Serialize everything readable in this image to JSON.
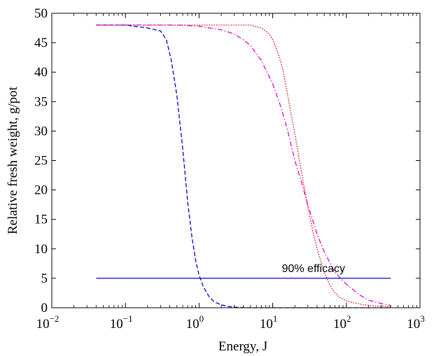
{
  "chart_data": {
    "type": "line",
    "xscale": "log",
    "xlabel": "Energy, J",
    "ylabel": "Relative fresh weight, g/pot",
    "xlim": [
      0.01,
      1000
    ],
    "ylim": [
      0,
      50
    ],
    "grid": false,
    "legend": "none",
    "x_ticks": [
      {
        "base": "10",
        "exp": "−2",
        "value": 0.01
      },
      {
        "base": "10",
        "exp": "−1",
        "value": 0.1
      },
      {
        "base": "10",
        "exp": "0",
        "value": 1
      },
      {
        "base": "10",
        "exp": "1",
        "value": 10
      },
      {
        "base": "10",
        "exp": "2",
        "value": 100
      },
      {
        "base": "10",
        "exp": "3",
        "value": 1000
      }
    ],
    "y_ticks": [
      "0",
      "5",
      "10",
      "15",
      "20",
      "25",
      "30",
      "35",
      "40",
      "45",
      "50"
    ],
    "series": [
      {
        "color": "#0000cc",
        "dash": "dashed",
        "x": [
          0.04,
          0.1,
          0.2,
          0.3,
          0.36,
          0.42,
          0.5,
          0.6,
          0.7,
          0.8,
          0.9,
          1.0,
          1.15,
          1.35,
          1.6,
          2.0,
          2.5,
          3.5,
          5,
          10,
          30,
          100,
          400
        ],
        "y": [
          48,
          48,
          47.5,
          47,
          45.5,
          42,
          36,
          27,
          18,
          12,
          8,
          5.5,
          3.5,
          2,
          1,
          0.5,
          0.2,
          0.05,
          0,
          0,
          0,
          0,
          0
        ]
      },
      {
        "color": "#dd0000",
        "dash": "dotted",
        "x": [
          0.04,
          0.1,
          1,
          5,
          7,
          9,
          10,
          12,
          14,
          16,
          18,
          20,
          22,
          25,
          30,
          35,
          40,
          50,
          60,
          70,
          80,
          100,
          130,
          170,
          250,
          400
        ],
        "y": [
          48,
          48,
          48,
          48,
          47.5,
          46.5,
          45.5,
          43,
          40,
          36,
          32.5,
          29.5,
          26.5,
          22.5,
          17,
          13,
          10,
          6,
          3.8,
          2.5,
          1.8,
          1.2,
          0.8,
          0.5,
          0.3,
          0.2
        ]
      },
      {
        "color": "#dd00dd",
        "dash": "dashdot",
        "x": [
          0.04,
          0.1,
          0.5,
          1,
          2,
          3,
          4,
          5,
          7,
          10,
          13,
          16,
          20,
          25,
          30,
          40,
          50,
          70,
          100,
          150,
          200,
          300,
          400
        ],
        "y": [
          48,
          48,
          48,
          47.8,
          47.2,
          46.5,
          45.5,
          44.5,
          42,
          38,
          34,
          30,
          25,
          21,
          17.5,
          12.5,
          9.5,
          6,
          4,
          2.2,
          1.3,
          0.7,
          0.4
        ]
      },
      {
        "color": "#0000cc",
        "dash": "solid",
        "x": [
          0.04,
          400
        ],
        "y": [
          5,
          5
        ]
      }
    ],
    "annotations": [
      {
        "text": "90% efficacy",
        "x": 30,
        "y": 5
      }
    ]
  }
}
